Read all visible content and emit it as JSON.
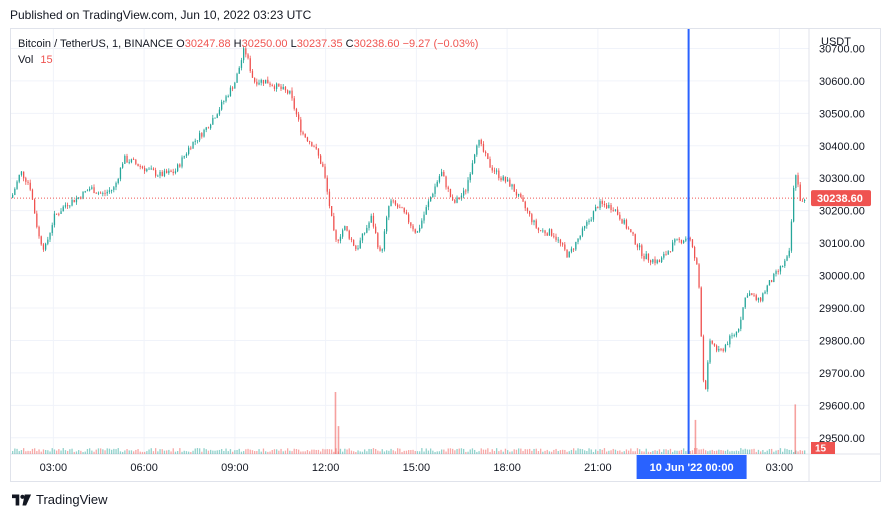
{
  "published_text": "Published on TradingView.com, Jun 10, 2022 03:23 UTC",
  "brand": "TradingView",
  "colors": {
    "up": "#26a69a",
    "down": "#ef5350",
    "crosshair": "#2962ff",
    "grid": "#f0f3fa",
    "text": "#131722"
  },
  "legend": {
    "symbol": "Bitcoin / TetherUS, 1, BINANCE",
    "o_label": "O",
    "o_value": "30247.88",
    "h_label": "H",
    "h_value": "30250.00",
    "l_label": "L",
    "l_value": "30237.35",
    "c_label": "C",
    "c_value": "30238.60",
    "change": "−9.27 (−0.03%)"
  },
  "vol_legend": {
    "label": "Vol",
    "value": "15"
  },
  "chart_data": {
    "type": "candlestick",
    "currency": "USDT",
    "ylim": [
      29450,
      30760
    ],
    "yticks": [
      29500,
      29600,
      29700,
      29800,
      29900,
      30000,
      30100,
      30200,
      30300,
      30400,
      30500,
      30600,
      30700
    ],
    "ytick_labels": [
      "29500.00",
      "29600.00",
      "29700.00",
      "29800.00",
      "29900.00",
      "30000.00",
      "30100.00",
      "30200.00",
      "30300.00",
      "30400.00",
      "30500.00",
      "30600.00",
      "30700.00"
    ],
    "xlim_hours": [
      1.6,
      27.98
    ],
    "xticks_hours": [
      3,
      6,
      9,
      12,
      15,
      18,
      21,
      27
    ],
    "xtick_labels": [
      "03:00",
      "06:00",
      "09:00",
      "12:00",
      "15:00",
      "18:00",
      "21:00",
      "03:00"
    ],
    "crosshair": {
      "hour": 24.0,
      "label": "10 Jun '22   00:00"
    },
    "last_price": {
      "value": 30238.6,
      "label": "30238.60"
    },
    "volume_last": "15",
    "price_path": [
      [
        1.6,
        30240
      ],
      [
        1.9,
        30320
      ],
      [
        2.2,
        30280
      ],
      [
        2.5,
        30120
      ],
      [
        2.7,
        30080
      ],
      [
        3.0,
        30180
      ],
      [
        3.4,
        30220
      ],
      [
        3.8,
        30240
      ],
      [
        4.2,
        30270
      ],
      [
        4.6,
        30250
      ],
      [
        5.0,
        30270
      ],
      [
        5.3,
        30360
      ],
      [
        5.6,
        30350
      ],
      [
        6.0,
        30330
      ],
      [
        6.5,
        30310
      ],
      [
        7.0,
        30320
      ],
      [
        7.5,
        30400
      ],
      [
        8.0,
        30450
      ],
      [
        8.5,
        30520
      ],
      [
        9.0,
        30600
      ],
      [
        9.3,
        30700
      ],
      [
        9.6,
        30600
      ],
      [
        10.0,
        30600
      ],
      [
        10.4,
        30580
      ],
      [
        10.8,
        30560
      ],
      [
        11.2,
        30440
      ],
      [
        11.6,
        30400
      ],
      [
        11.9,
        30330
      ],
      [
        12.1,
        30220
      ],
      [
        12.3,
        30100
      ],
      [
        12.6,
        30150
      ],
      [
        13.0,
        30080
      ],
      [
        13.5,
        30180
      ],
      [
        13.8,
        30060
      ],
      [
        14.1,
        30230
      ],
      [
        14.5,
        30200
      ],
      [
        15.0,
        30130
      ],
      [
        15.4,
        30230
      ],
      [
        15.8,
        30320
      ],
      [
        16.2,
        30220
      ],
      [
        16.6,
        30260
      ],
      [
        17.0,
        30420
      ],
      [
        17.4,
        30340
      ],
      [
        17.8,
        30300
      ],
      [
        18.1,
        30280
      ],
      [
        18.5,
        30220
      ],
      [
        19.0,
        30140
      ],
      [
        19.5,
        30130
      ],
      [
        20.0,
        30060
      ],
      [
        20.5,
        30140
      ],
      [
        21.0,
        30220
      ],
      [
        21.5,
        30210
      ],
      [
        22.0,
        30140
      ],
      [
        22.5,
        30060
      ],
      [
        23.0,
        30040
      ],
      [
        23.5,
        30100
      ],
      [
        24.0,
        30120
      ],
      [
        24.3,
        30010
      ],
      [
        24.5,
        29620
      ],
      [
        24.7,
        29800
      ],
      [
        25.0,
        29760
      ],
      [
        25.3,
        29800
      ],
      [
        25.6,
        29830
      ],
      [
        25.9,
        29950
      ],
      [
        26.3,
        29920
      ],
      [
        26.6,
        29970
      ],
      [
        27.0,
        30020
      ],
      [
        27.3,
        30060
      ],
      [
        27.5,
        30330
      ],
      [
        27.7,
        30220
      ],
      [
        27.98,
        30238.6
      ]
    ],
    "volume_spikes": [
      {
        "hour": 12.3,
        "value": 100
      },
      {
        "hour": 12.4,
        "value": 45
      },
      {
        "hour": 24.2,
        "value": 55
      },
      {
        "hour": 27.5,
        "value": 80
      }
    ]
  }
}
